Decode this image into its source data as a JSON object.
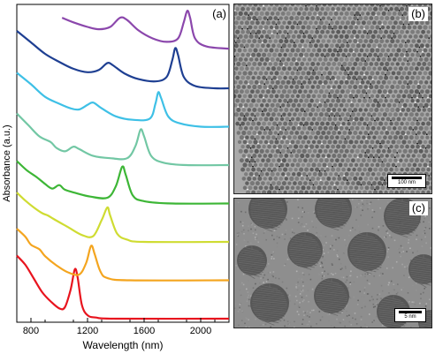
{
  "figure": {
    "panel_a_label": "(a)",
    "panel_b_label": "(b)",
    "panel_c_label": "(c)",
    "scale_b": "100 nm",
    "scale_c": "5 nm"
  },
  "chart_data": {
    "type": "line",
    "xlabel": "Wavelength (nm)",
    "ylabel": "Absorbance (a.u.)",
    "xlim": [
      700,
      2200
    ],
    "xticks": [
      800,
      1200,
      1600,
      2000
    ],
    "y_ticks_shown": false,
    "grid": false,
    "legend": "none",
    "series": [
      {
        "color": "#e8141e",
        "peak_nm": 1115,
        "values": [
          [
            700,
            0.55
          ],
          [
            760,
            0.47
          ],
          [
            820,
            0.35
          ],
          [
            880,
            0.23
          ],
          [
            940,
            0.15
          ],
          [
            1000,
            0.09
          ],
          [
            1040,
            0.1
          ],
          [
            1080,
            0.25
          ],
          [
            1110,
            0.43
          ],
          [
            1130,
            0.36
          ],
          [
            1160,
            0.12
          ],
          [
            1200,
            0.03
          ],
          [
            1260,
            0.01
          ],
          [
            1400,
            0.0
          ],
          [
            2200,
            0.0
          ]
        ]
      },
      {
        "color": "#f4a51f",
        "peak_nm": 1225,
        "values": [
          [
            700,
            0.45
          ],
          [
            760,
            0.38
          ],
          [
            800,
            0.31
          ],
          [
            860,
            0.27
          ],
          [
            900,
            0.21
          ],
          [
            980,
            0.13
          ],
          [
            1060,
            0.07
          ],
          [
            1140,
            0.05
          ],
          [
            1190,
            0.15
          ],
          [
            1225,
            0.3
          ],
          [
            1250,
            0.23
          ],
          [
            1290,
            0.08
          ],
          [
            1340,
            0.02
          ],
          [
            1500,
            0.0
          ],
          [
            2200,
            0.0
          ]
        ]
      },
      {
        "color": "#cfdc32",
        "peak_nm": 1340,
        "values": [
          [
            700,
            0.43
          ],
          [
            760,
            0.36
          ],
          [
            820,
            0.3
          ],
          [
            880,
            0.25
          ],
          [
            920,
            0.23
          ],
          [
            960,
            0.2
          ],
          [
            1060,
            0.13
          ],
          [
            1160,
            0.06
          ],
          [
            1240,
            0.05
          ],
          [
            1300,
            0.19
          ],
          [
            1340,
            0.3
          ],
          [
            1360,
            0.23
          ],
          [
            1410,
            0.07
          ],
          [
            1480,
            0.02
          ],
          [
            1600,
            0.0
          ],
          [
            2200,
            0.0
          ]
        ]
      },
      {
        "color": "#3db636",
        "peak_nm": 1445,
        "values": [
          [
            700,
            0.37
          ],
          [
            770,
            0.29
          ],
          [
            840,
            0.23
          ],
          [
            900,
            0.17
          ],
          [
            950,
            0.13
          ],
          [
            1000,
            0.16
          ],
          [
            1040,
            0.12
          ],
          [
            1120,
            0.09
          ],
          [
            1220,
            0.06
          ],
          [
            1340,
            0.05
          ],
          [
            1400,
            0.15
          ],
          [
            1445,
            0.32
          ],
          [
            1470,
            0.25
          ],
          [
            1520,
            0.07
          ],
          [
            1600,
            0.02
          ],
          [
            1800,
            0.0
          ],
          [
            2200,
            0.0
          ]
        ]
      },
      {
        "color": "#72c7a4",
        "peak_nm": 1575,
        "values": [
          [
            700,
            0.45
          ],
          [
            780,
            0.35
          ],
          [
            860,
            0.25
          ],
          [
            940,
            0.2
          ],
          [
            980,
            0.15
          ],
          [
            1040,
            0.12
          ],
          [
            1100,
            0.16
          ],
          [
            1140,
            0.14
          ],
          [
            1240,
            0.08
          ],
          [
            1360,
            0.06
          ],
          [
            1480,
            0.06
          ],
          [
            1540,
            0.17
          ],
          [
            1575,
            0.31
          ],
          [
            1600,
            0.25
          ],
          [
            1650,
            0.08
          ],
          [
            1740,
            0.02
          ],
          [
            1900,
            0.0
          ],
          [
            2200,
            0.0
          ]
        ]
      },
      {
        "color": "#3ec0e6",
        "peak_nm": 1695,
        "values": [
          [
            700,
            0.47
          ],
          [
            800,
            0.37
          ],
          [
            900,
            0.26
          ],
          [
            1000,
            0.2
          ],
          [
            1080,
            0.16
          ],
          [
            1140,
            0.15
          ],
          [
            1200,
            0.19
          ],
          [
            1240,
            0.21
          ],
          [
            1300,
            0.16
          ],
          [
            1400,
            0.09
          ],
          [
            1520,
            0.06
          ],
          [
            1640,
            0.07
          ],
          [
            1680,
            0.2
          ],
          [
            1700,
            0.3
          ],
          [
            1720,
            0.25
          ],
          [
            1770,
            0.09
          ],
          [
            1850,
            0.03
          ],
          [
            2000,
            0.0
          ],
          [
            2200,
            0.0
          ]
        ]
      },
      {
        "color": "#1e3f92",
        "peak_nm": 1820,
        "values": [
          [
            700,
            0.5
          ],
          [
            800,
            0.4
          ],
          [
            900,
            0.3
          ],
          [
            1000,
            0.23
          ],
          [
            1100,
            0.17
          ],
          [
            1200,
            0.14
          ],
          [
            1280,
            0.16
          ],
          [
            1340,
            0.22
          ],
          [
            1380,
            0.2
          ],
          [
            1460,
            0.13
          ],
          [
            1560,
            0.08
          ],
          [
            1680,
            0.06
          ],
          [
            1760,
            0.1
          ],
          [
            1800,
            0.25
          ],
          [
            1820,
            0.35
          ],
          [
            1840,
            0.29
          ],
          [
            1880,
            0.1
          ],
          [
            1960,
            0.02
          ],
          [
            2100,
            0.0
          ],
          [
            2200,
            0.0
          ]
        ]
      },
      {
        "color": "#8b47ac",
        "peak_nm": 1905,
        "values": [
          [
            1020,
            0.28
          ],
          [
            1100,
            0.24
          ],
          [
            1200,
            0.2
          ],
          [
            1280,
            0.18
          ],
          [
            1360,
            0.2
          ],
          [
            1430,
            0.28
          ],
          [
            1480,
            0.26
          ],
          [
            1560,
            0.17
          ],
          [
            1660,
            0.1
          ],
          [
            1760,
            0.07
          ],
          [
            1840,
            0.1
          ],
          [
            1880,
            0.24
          ],
          [
            1905,
            0.34
          ],
          [
            1925,
            0.28
          ],
          [
            1960,
            0.1
          ],
          [
            2040,
            0.03
          ],
          [
            2200,
            0.01
          ]
        ]
      }
    ]
  }
}
